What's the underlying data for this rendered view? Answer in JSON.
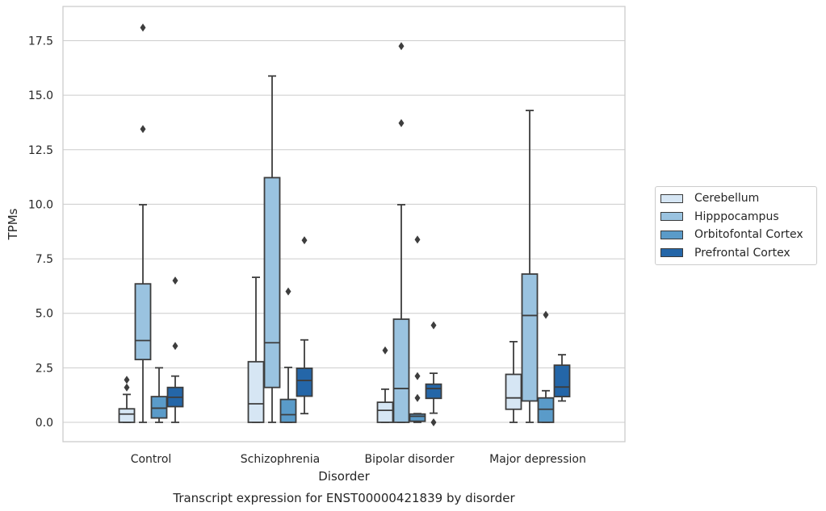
{
  "chart_data": {
    "type": "boxplot",
    "title": "",
    "caption": "Transcript expression for ENST00000421839 by disorder",
    "xlabel": "Disorder",
    "ylabel": "TPMs",
    "ylim": [
      -0.85,
      18.9
    ],
    "yticks": [
      0.0,
      2.5,
      5.0,
      7.5,
      10.0,
      12.5,
      15.0,
      17.5
    ],
    "ytick_labels": [
      "0.0",
      "2.5",
      "5.0",
      "7.5",
      "10.0",
      "12.5",
      "15.0",
      "17.5"
    ],
    "grid": "horizontal",
    "legend_position": "right",
    "categories": [
      "Control",
      "Schizophrenia",
      "Bipolar disorder",
      "Major depression"
    ],
    "series": [
      {
        "name": "Cerebellum",
        "color": "#d6e6f4",
        "boxes": [
          {
            "whisker_low": 0.0,
            "q1": 0.0,
            "median": 0.38,
            "q3": 0.62,
            "whisker_high": 1.28,
            "outliers": [
              1.6,
              1.95
            ]
          },
          {
            "whisker_low": 0.0,
            "q1": 0.0,
            "median": 0.85,
            "q3": 2.78,
            "whisker_high": 6.65,
            "outliers": []
          },
          {
            "whisker_low": 0.0,
            "q1": 0.0,
            "median": 0.55,
            "q3": 0.92,
            "whisker_high": 1.52,
            "outliers": [
              3.3
            ]
          },
          {
            "whisker_low": 0.0,
            "q1": 0.6,
            "median": 1.12,
            "q3": 2.2,
            "whisker_high": 3.7,
            "outliers": []
          }
        ]
      },
      {
        "name": "Hipppocampus",
        "color": "#9ac3e0",
        "boxes": [
          {
            "whisker_low": 0.0,
            "q1": 2.88,
            "median": 3.75,
            "q3": 6.35,
            "whisker_high": 9.98,
            "outliers": [
              13.45,
              18.1
            ]
          },
          {
            "whisker_low": 0.0,
            "q1": 1.6,
            "median": 3.65,
            "q3": 11.22,
            "whisker_high": 15.88,
            "outliers": []
          },
          {
            "whisker_low": 0.0,
            "q1": 0.0,
            "median": 1.55,
            "q3": 4.73,
            "whisker_high": 9.98,
            "outliers": [
              13.72,
              17.25
            ]
          },
          {
            "whisker_low": 0.0,
            "q1": 0.98,
            "median": 4.9,
            "q3": 6.8,
            "whisker_high": 14.3,
            "outliers": []
          }
        ]
      },
      {
        "name": "Orbitofontal Cortex",
        "color": "#5a9bc9",
        "boxes": [
          {
            "whisker_low": 0.0,
            "q1": 0.2,
            "median": 0.65,
            "q3": 1.18,
            "whisker_high": 2.5,
            "outliers": []
          },
          {
            "whisker_low": 0.0,
            "q1": 0.0,
            "median": 0.35,
            "q3": 1.05,
            "whisker_high": 2.52,
            "outliers": [
              6.0
            ]
          },
          {
            "whisker_low": 0.0,
            "q1": 0.05,
            "median": 0.28,
            "q3": 0.38,
            "whisker_high": 0.4,
            "outliers": [
              1.12,
              2.12,
              8.38
            ]
          },
          {
            "whisker_low": 0.0,
            "q1": 0.0,
            "median": 0.6,
            "q3": 1.12,
            "whisker_high": 1.45,
            "outliers": [
              4.93
            ]
          }
        ]
      },
      {
        "name": "Prefrontal Cortex",
        "color": "#2466a8",
        "boxes": [
          {
            "whisker_low": 0.0,
            "q1": 0.72,
            "median": 1.15,
            "q3": 1.6,
            "whisker_high": 2.12,
            "outliers": [
              3.5,
              6.5
            ]
          },
          {
            "whisker_low": 0.4,
            "q1": 1.2,
            "median": 1.92,
            "q3": 2.48,
            "whisker_high": 3.78,
            "outliers": [
              8.35
            ]
          },
          {
            "whisker_low": 0.42,
            "q1": 1.1,
            "median": 1.55,
            "q3": 1.75,
            "whisker_high": 2.25,
            "outliers": [
              0.0,
              4.45
            ]
          },
          {
            "whisker_low": 0.98,
            "q1": 1.18,
            "median": 1.62,
            "q3": 2.62,
            "whisker_high": 3.1,
            "outliers": []
          }
        ]
      }
    ]
  }
}
